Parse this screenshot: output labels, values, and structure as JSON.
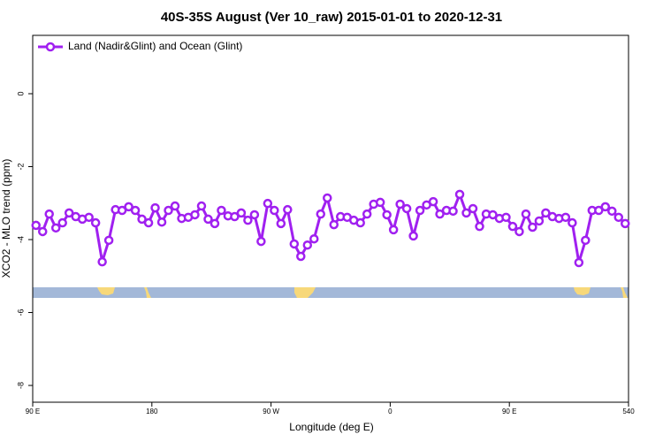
{
  "chart_data": {
    "type": "line",
    "title": "40S-35S August (Ver 10_raw)   2015-01-01 to 2020-12-31",
    "x_label": "Longitude (deg E)",
    "y_label": "XCO2 - MLO trend (ppm)",
    "legend_position": "top-left",
    "xlim": [
      90,
      540
    ],
    "xticks": [
      {
        "value": 90,
        "label": "90 E"
      },
      180,
      {
        "value": 270,
        "label": "90 W"
      },
      {
        "value": 360,
        "label": "0"
      },
      {
        "value": 450,
        "label": "90 E"
      },
      540
    ],
    "ylim": [
      -8.46,
      1.6
    ],
    "yticks": [
      -8,
      -6,
      -4,
      -2,
      0
    ],
    "x": [
      92.5,
      97.5,
      102.5,
      107.5,
      112.5,
      117.5,
      122.5,
      127.5,
      132.5,
      137.5,
      142.5,
      147.5,
      152.5,
      157.5,
      162.5,
      167.5,
      172.5,
      177.5,
      182.5,
      187.5,
      192.5,
      197.5,
      202.5,
      207.5,
      212.5,
      217.5,
      222.5,
      227.5,
      232.5,
      237.5,
      242.5,
      247.5,
      252.5,
      257.5,
      262.5,
      267.5,
      272.5,
      277.5,
      282.5,
      287.5,
      292.5,
      297.5,
      302.5,
      307.5,
      312.5,
      317.5,
      322.5,
      327.5,
      332.5,
      337.5,
      342.5,
      347.5,
      352.5,
      357.5,
      362.5,
      367.5,
      372.5,
      377.5,
      382.5,
      387.5,
      392.5,
      397.5,
      402.5,
      407.5,
      412.5,
      417.5,
      422.5,
      427.5,
      432.5,
      437.5,
      442.5,
      447.5,
      452.5,
      457.5,
      462.5,
      467.5,
      472.5,
      477.5,
      482.5,
      487.5,
      492.5,
      497.5,
      502.5,
      507.5,
      512.5,
      517.5,
      522.5,
      527.5,
      532.5,
      537.5
    ],
    "series": [
      {
        "name": "Land (Nadir&Glint) and Ocean (Glint)",
        "color": "#a020f0",
        "values": [
          -3.61,
          -3.78,
          -3.3,
          -3.68,
          -3.54,
          -3.27,
          -3.37,
          -3.44,
          -3.39,
          -3.54,
          -4.61,
          -4.02,
          -3.18,
          -3.2,
          -3.1,
          -3.2,
          -3.44,
          -3.54,
          -3.13,
          -3.52,
          -3.2,
          -3.08,
          -3.42,
          -3.39,
          -3.32,
          -3.08,
          -3.44,
          -3.56,
          -3.2,
          -3.35,
          -3.37,
          -3.27,
          -3.47,
          -3.32,
          -4.05,
          -3.01,
          -3.2,
          -3.56,
          -3.18,
          -4.12,
          -4.46,
          -4.15,
          -3.98,
          -3.3,
          -2.86,
          -3.59,
          -3.37,
          -3.39,
          -3.47,
          -3.54,
          -3.3,
          -3.03,
          -2.98,
          -3.32,
          -3.73,
          -3.03,
          -3.15,
          -3.9,
          -3.2,
          -3.05,
          -2.96,
          -3.3,
          -3.2,
          -3.22,
          -2.76,
          -3.27,
          -3.15,
          -3.64,
          -3.3,
          -3.32,
          -3.42,
          -3.39,
          -3.64,
          -3.78,
          -3.3,
          -3.66,
          -3.49,
          -3.27,
          -3.37,
          -3.42,
          -3.39,
          -3.54,
          -4.63,
          -4.02,
          -3.2,
          -3.2,
          -3.1,
          -3.22,
          -3.39,
          -3.56
        ]
      }
    ]
  }
}
